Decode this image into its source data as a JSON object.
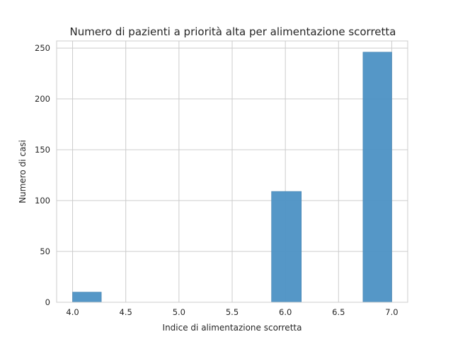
{
  "chart_data": {
    "type": "bar",
    "title": "Numero di pazienti a priorità alta per alimentazione scorretta",
    "xlabel": "Indice di alimentazione scorretta",
    "ylabel": "Numero di casi",
    "xlim": [
      3.85,
      7.15
    ],
    "ylim": [
      0,
      257
    ],
    "x_ticks": [
      "4.0",
      "4.5",
      "5.0",
      "5.5",
      "6.0",
      "6.5",
      "7.0"
    ],
    "y_ticks": [
      "0",
      "50",
      "100",
      "150",
      "200",
      "250"
    ],
    "bins": [
      {
        "x0": 4.0,
        "x1": 4.27,
        "value": 10
      },
      {
        "x0": 5.87,
        "x1": 6.15,
        "value": 109
      },
      {
        "x0": 6.73,
        "x1": 7.0,
        "value": 246
      }
    ],
    "grid": true,
    "bar_color": "#4c91c4"
  }
}
